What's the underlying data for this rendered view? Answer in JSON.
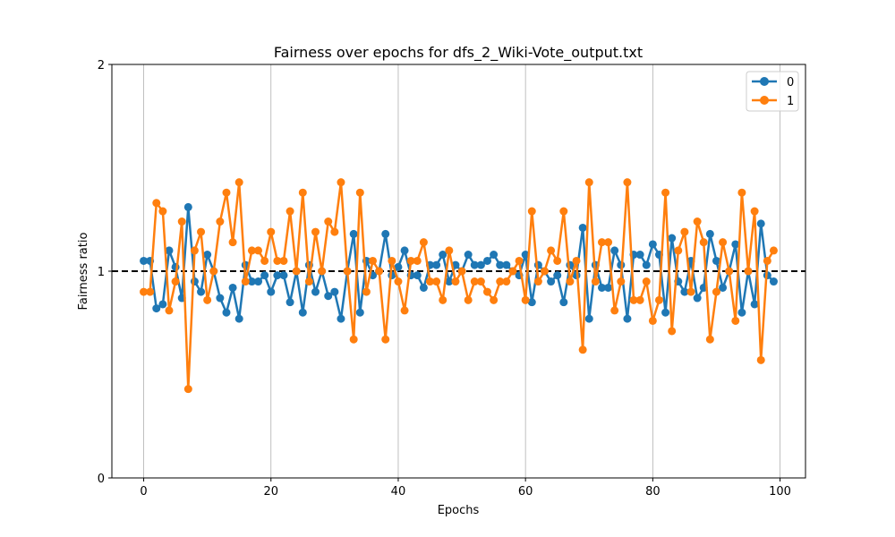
{
  "chart_data": {
    "type": "line",
    "title": "Fairness over epochs for dfs_2_Wiki-Vote_output.txt",
    "xlabel": "Epochs",
    "ylabel": "Fairness ratio",
    "xlim": [
      -5,
      104
    ],
    "ylim": [
      0,
      2
    ],
    "xticks": [
      0,
      20,
      40,
      60,
      80,
      100
    ],
    "yticks": [
      0,
      1,
      2
    ],
    "x_grid": true,
    "y_grid": false,
    "reference_line": {
      "y": 1,
      "style": "dashed",
      "color": "#000000"
    },
    "legend_position": "top-right",
    "x": [
      0,
      1,
      2,
      3,
      4,
      5,
      6,
      7,
      8,
      9,
      10,
      11,
      12,
      13,
      14,
      15,
      16,
      17,
      18,
      19,
      20,
      21,
      22,
      23,
      24,
      25,
      26,
      27,
      28,
      29,
      30,
      31,
      32,
      33,
      34,
      35,
      36,
      37,
      38,
      39,
      40,
      41,
      42,
      43,
      44,
      45,
      46,
      47,
      48,
      49,
      50,
      51,
      52,
      53,
      54,
      55,
      56,
      57,
      58,
      59,
      60,
      61,
      62,
      63,
      64,
      65,
      66,
      67,
      68,
      69,
      70,
      71,
      72,
      73,
      74,
      75,
      76,
      77,
      78,
      79,
      80,
      81,
      82,
      83,
      84,
      85,
      86,
      87,
      88,
      89,
      90,
      91,
      92,
      93,
      94,
      95,
      96,
      97,
      98,
      99
    ],
    "series": [
      {
        "name": "0",
        "color": "#1f77b4",
        "values": [
          1.05,
          1.05,
          0.82,
          0.84,
          1.1,
          1.02,
          0.87,
          1.31,
          0.95,
          0.9,
          1.08,
          1.0,
          0.87,
          0.8,
          0.92,
          0.77,
          1.03,
          0.95,
          0.95,
          0.98,
          0.9,
          0.98,
          0.98,
          0.85,
          1.0,
          0.8,
          1.03,
          0.9,
          1.0,
          0.88,
          0.9,
          0.77,
          1.0,
          1.18,
          0.8,
          1.05,
          0.98,
          1.0,
          1.18,
          0.98,
          1.02,
          1.1,
          0.98,
          0.98,
          0.92,
          1.03,
          1.03,
          1.08,
          0.95,
          1.03,
          1.0,
          1.08,
          1.03,
          1.03,
          1.05,
          1.08,
          1.03,
          1.03,
          1.0,
          0.98,
          1.08,
          0.85,
          1.03,
          1.0,
          0.95,
          0.98,
          0.85,
          1.03,
          0.98,
          1.21,
          0.77,
          1.03,
          0.92,
          0.92,
          1.1,
          1.03,
          0.77,
          1.08,
          1.08,
          1.03,
          1.13,
          1.08,
          0.8,
          1.16,
          0.95,
          0.9,
          1.05,
          0.87,
          0.92,
          1.18,
          1.05,
          0.92,
          1.0,
          1.13,
          0.8,
          1.0,
          0.84,
          1.23,
          0.98,
          0.95
        ]
      },
      {
        "name": "1",
        "color": "#ff7f0e",
        "values": [
          0.9,
          0.9,
          1.33,
          1.29,
          0.81,
          0.95,
          1.24,
          0.43,
          1.1,
          1.19,
          0.86,
          1.0,
          1.24,
          1.38,
          1.14,
          1.43,
          0.95,
          1.1,
          1.1,
          1.05,
          1.19,
          1.05,
          1.05,
          1.29,
          1.0,
          1.38,
          0.95,
          1.19,
          1.0,
          1.24,
          1.19,
          1.43,
          1.0,
          0.67,
          1.38,
          0.9,
          1.05,
          1.0,
          0.67,
          1.05,
          0.95,
          0.81,
          1.05,
          1.05,
          1.14,
          0.95,
          0.95,
          0.86,
          1.1,
          0.95,
          1.0,
          0.86,
          0.95,
          0.95,
          0.9,
          0.86,
          0.95,
          0.95,
          1.0,
          1.05,
          0.86,
          1.29,
          0.95,
          1.0,
          1.1,
          1.05,
          1.29,
          0.95,
          1.05,
          0.62,
          1.43,
          0.95,
          1.14,
          1.14,
          0.81,
          0.95,
          1.43,
          0.86,
          0.86,
          0.95,
          0.76,
          0.86,
          1.38,
          0.71,
          1.1,
          1.19,
          0.9,
          1.24,
          1.14,
          0.67,
          0.9,
          1.14,
          1.0,
          0.76,
          1.38,
          1.0,
          1.29,
          0.57,
          1.05,
          1.1
        ]
      }
    ]
  }
}
